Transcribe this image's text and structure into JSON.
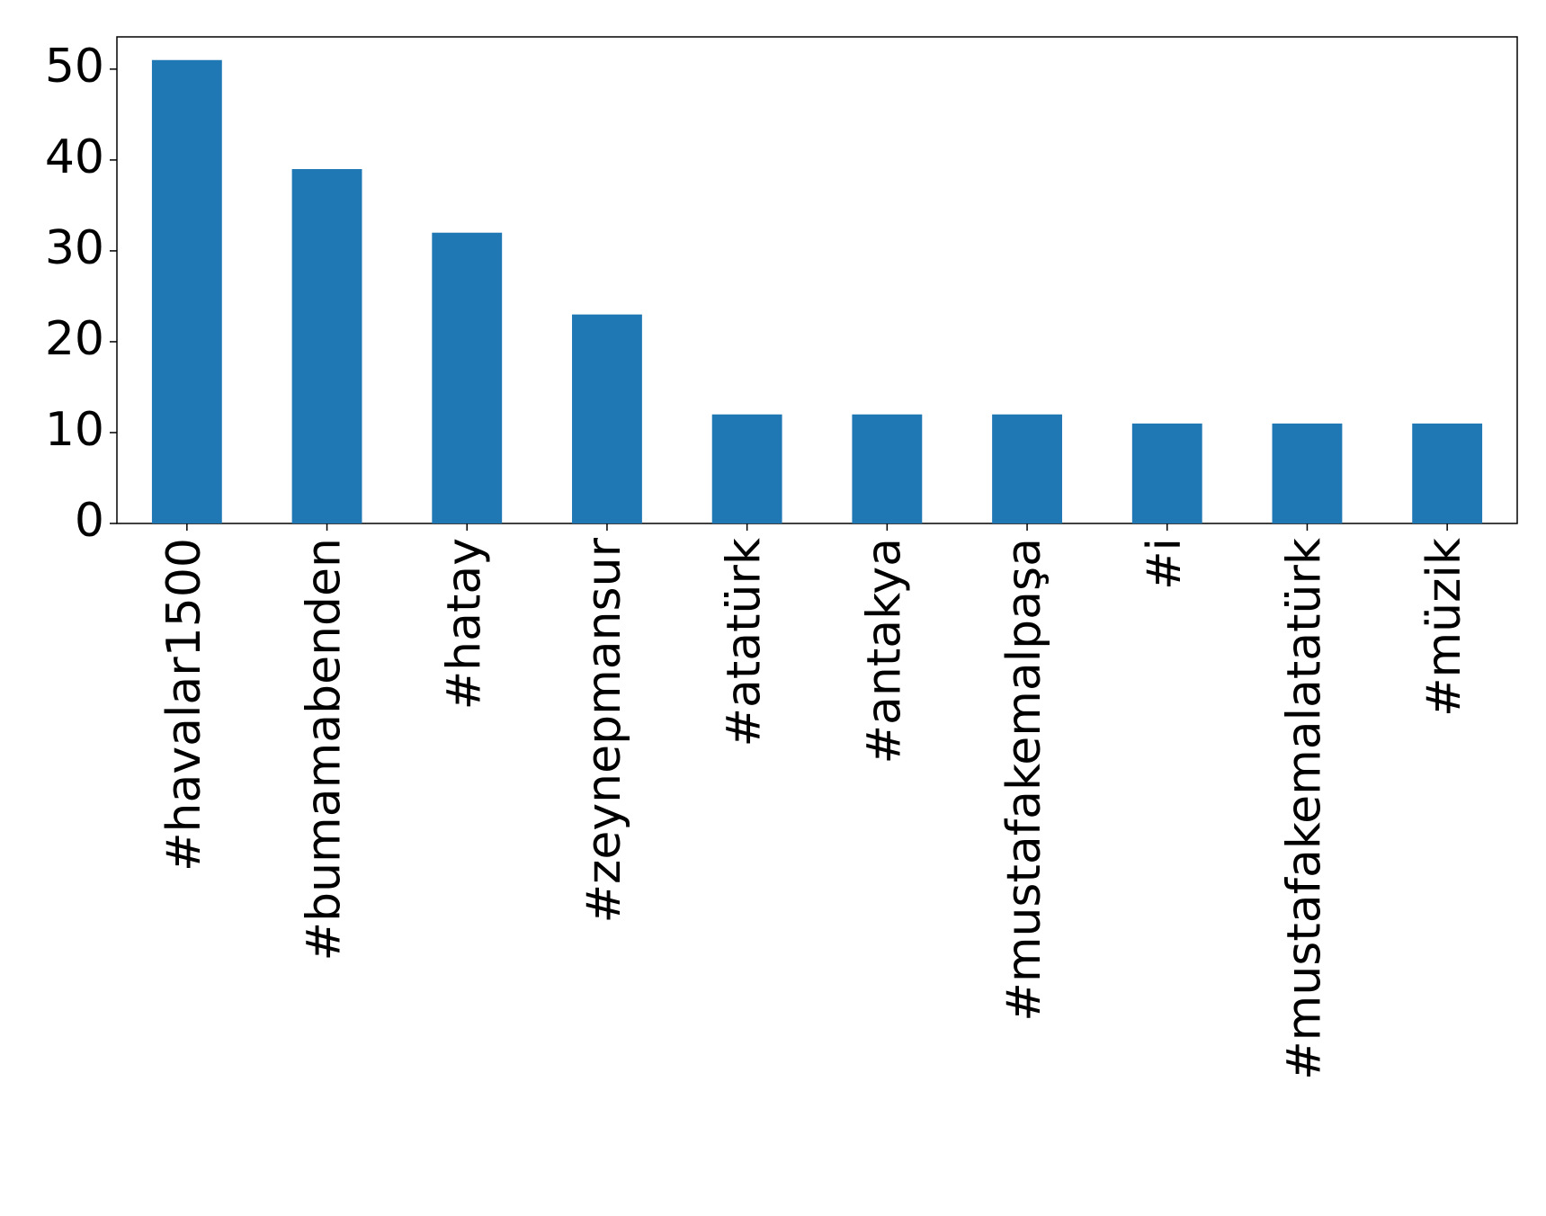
{
  "chart_data": {
    "type": "bar",
    "categories": [
      "#havalar1500",
      "#bumamabenden",
      "#hatay",
      "#zeynepmansur",
      "#atatürk",
      "#antakya",
      "#mustafakemalpaşa",
      "#i",
      "#mustafakemalatatürk",
      "#müzik"
    ],
    "values": [
      51,
      39,
      32,
      23,
      12,
      12,
      12,
      11,
      11,
      11
    ],
    "color": "#1f77b4",
    "ylim": [
      0,
      53.55
    ],
    "yticks": [
      0,
      10,
      20,
      30,
      40,
      50
    ],
    "grid": false
  }
}
